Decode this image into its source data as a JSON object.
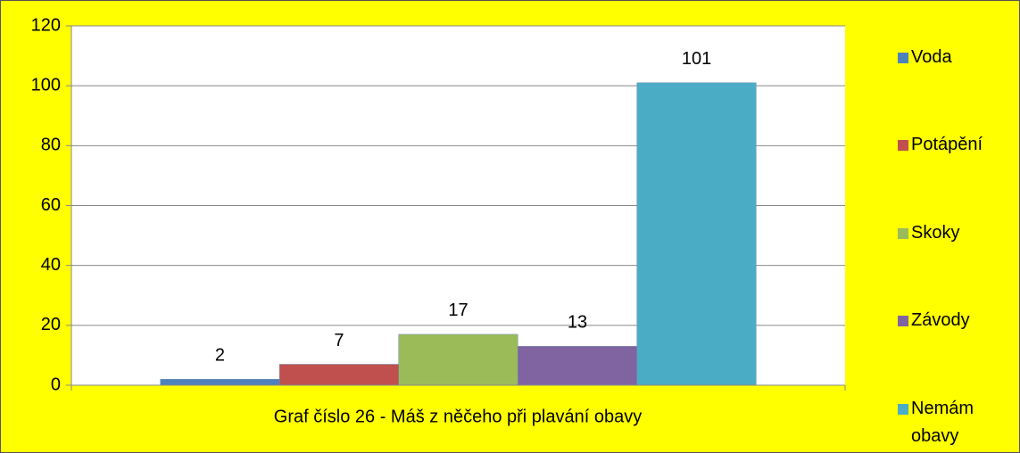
{
  "chart_data": {
    "type": "bar",
    "title": "Graf  číslo 26 - Máš z něčeho při plavání obavy",
    "series": [
      {
        "name": "Voda",
        "color": "#4f81bd",
        "values": [
          2
        ]
      },
      {
        "name": "Potápění",
        "color": "#c0504d",
        "values": [
          7
        ]
      },
      {
        "name": "Skoky",
        "color": "#9bbb59",
        "values": [
          17
        ]
      },
      {
        "name": "Závody",
        "color": "#8064a2",
        "values": [
          13
        ]
      },
      {
        "name": "Nemám obavy",
        "color": "#4bacc6",
        "values": [
          101
        ]
      }
    ],
    "ylim": [
      0,
      120
    ],
    "yticks": [
      0,
      20,
      40,
      60,
      80,
      100,
      120
    ],
    "grid": true,
    "legend": "right",
    "background": "#ffff00"
  }
}
